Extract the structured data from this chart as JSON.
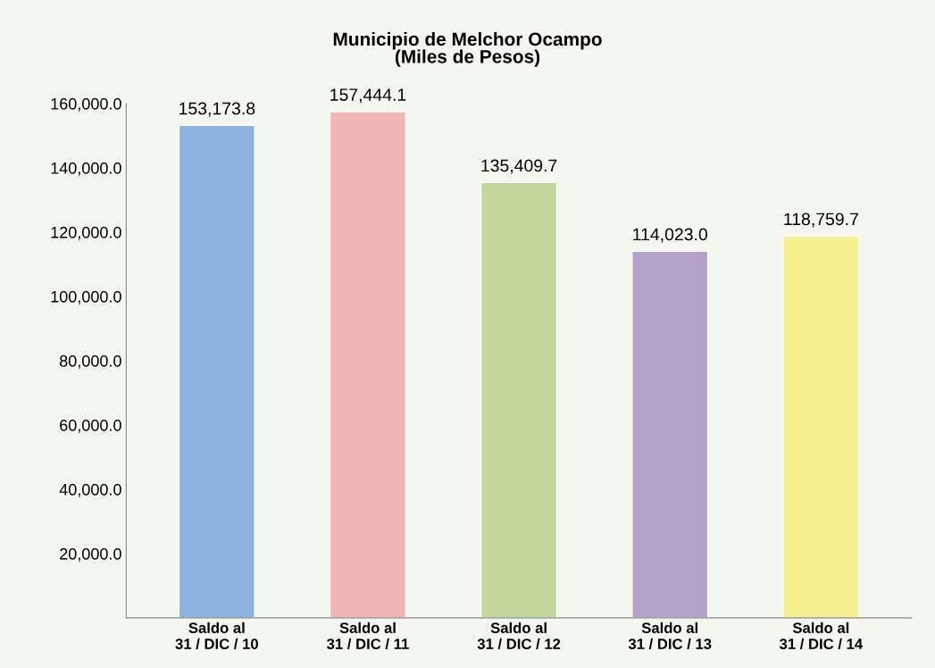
{
  "chart_data": {
    "type": "bar",
    "title": "Municipio de Melchor Ocampo\n(Miles de Pesos)",
    "categories": [
      "Saldo al\n31 / DIC / 10",
      "Saldo al\n31 / DIC / 11",
      "Saldo al\n31 / DIC / 12",
      "Saldo al\n31 / DIC / 13",
      "Saldo al\n31 / DIC / 14"
    ],
    "values": [
      153173.8,
      157444.1,
      135409.7,
      114023.0,
      118759.7
    ],
    "value_labels": [
      "153,173.8",
      "157,444.1",
      "135,409.7",
      "114,023.0",
      "118,759.7"
    ],
    "colors": [
      "#8db3e2",
      "#f2b5b5",
      "#c3d69b",
      "#b3a2c7",
      "#f5ef8f"
    ],
    "ylim": [
      0,
      160000
    ],
    "yticks": [
      {
        "value": 20000,
        "label": "20,000.0"
      },
      {
        "value": 40000,
        "label": "40,000.0"
      },
      {
        "value": 60000,
        "label": "60,000.0"
      },
      {
        "value": 80000,
        "label": "80,000.0"
      },
      {
        "value": 100000,
        "label": "100,000.0"
      },
      {
        "value": 120000,
        "label": "120,000.0"
      },
      {
        "value": 140000,
        "label": "140,000.0"
      },
      {
        "value": 160000,
        "label": "160,000.0"
      }
    ],
    "grid": false
  }
}
